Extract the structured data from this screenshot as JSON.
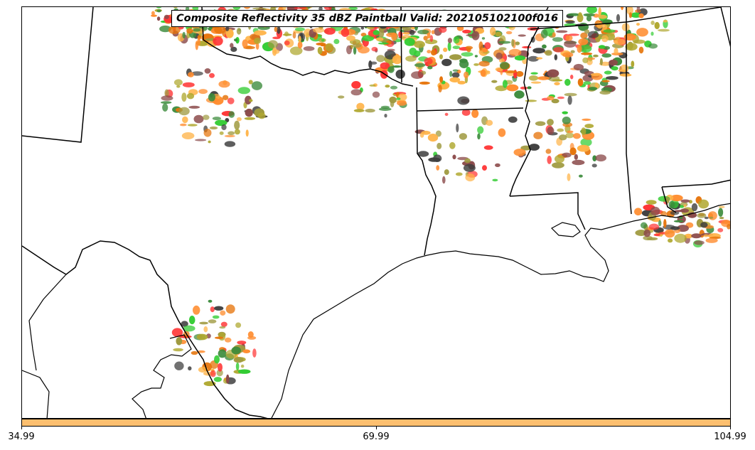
{
  "title": "Composite Reflectivity 35 dBZ Paintball Valid: 202105102100f016",
  "colorbar": {
    "color": "#fdbf6f",
    "ticks": [
      "34.99",
      "69.99",
      "104.99"
    ]
  },
  "palette": [
    "#ff3333",
    "#ff8c2e",
    "#ffb347",
    "#e6740a",
    "#8b4a4a",
    "#3d3d3d",
    "#9f9a40",
    "#33cc33",
    "#3a8a3a",
    "#b0a830"
  ],
  "map_features": [
    "state-borders",
    "coastline",
    "international-border",
    "mexico-state-borders"
  ]
}
